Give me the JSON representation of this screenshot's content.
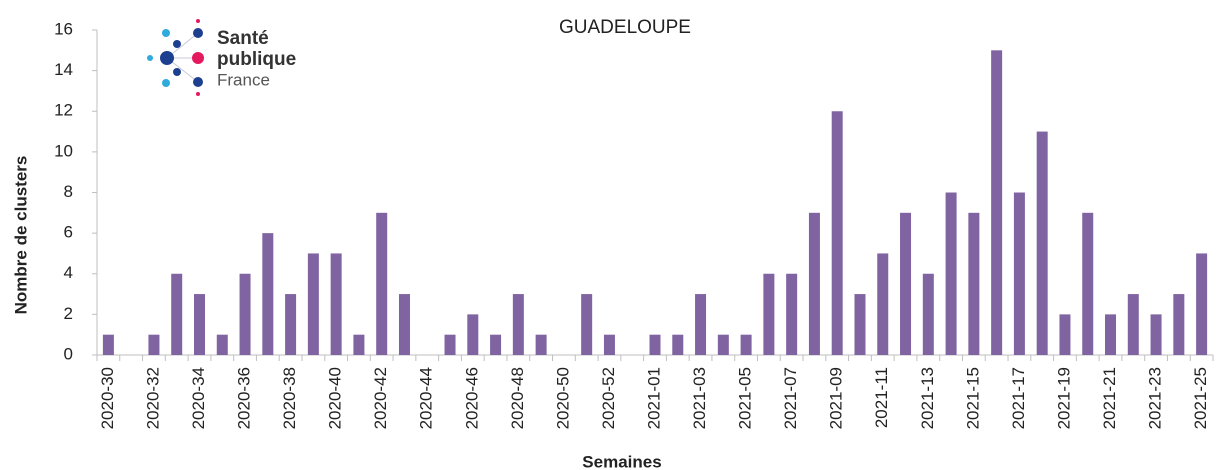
{
  "chart_data": {
    "type": "bar",
    "title": "GUADELOUPE",
    "annotations": [
      "Santé",
      "publique",
      "France"
    ],
    "x_label": "Semaines",
    "y_label": "Nombre de clusters",
    "categories": [
      "2020-30",
      null,
      "2020-32",
      null,
      "2020-34",
      null,
      "2020-36",
      null,
      "2020-38",
      null,
      "2020-40",
      null,
      "2020-42",
      null,
      "2020-44",
      null,
      "2020-46",
      null,
      "2020-48",
      null,
      "2020-50",
      null,
      "2020-52",
      null,
      "2021-01",
      null,
      "2021-03",
      null,
      "2021-05",
      null,
      "2021-07",
      null,
      "2021-09",
      null,
      "2021-11",
      null,
      "2021-13",
      null,
      "2021-15",
      null,
      "2021-17",
      null,
      "2021-19",
      null,
      "2021-21",
      null,
      "2021-23",
      null,
      "2021-25"
    ],
    "values": [
      1,
      0,
      1,
      4,
      3,
      1,
      4,
      6,
      3,
      5,
      5,
      1,
      7,
      3,
      0,
      1,
      2,
      1,
      3,
      1,
      0,
      3,
      1,
      0,
      1,
      1,
      3,
      1,
      1,
      4,
      4,
      7,
      12,
      3,
      5,
      7,
      4,
      8,
      7,
      15,
      8,
      11,
      2,
      7,
      2,
      3,
      2,
      3,
      5
    ],
    "color": "#8064a2",
    "ylim": [
      0,
      16
    ],
    "yticks": [
      0,
      2,
      4,
      6,
      8,
      10,
      12,
      14,
      16
    ],
    "grid": false
  }
}
